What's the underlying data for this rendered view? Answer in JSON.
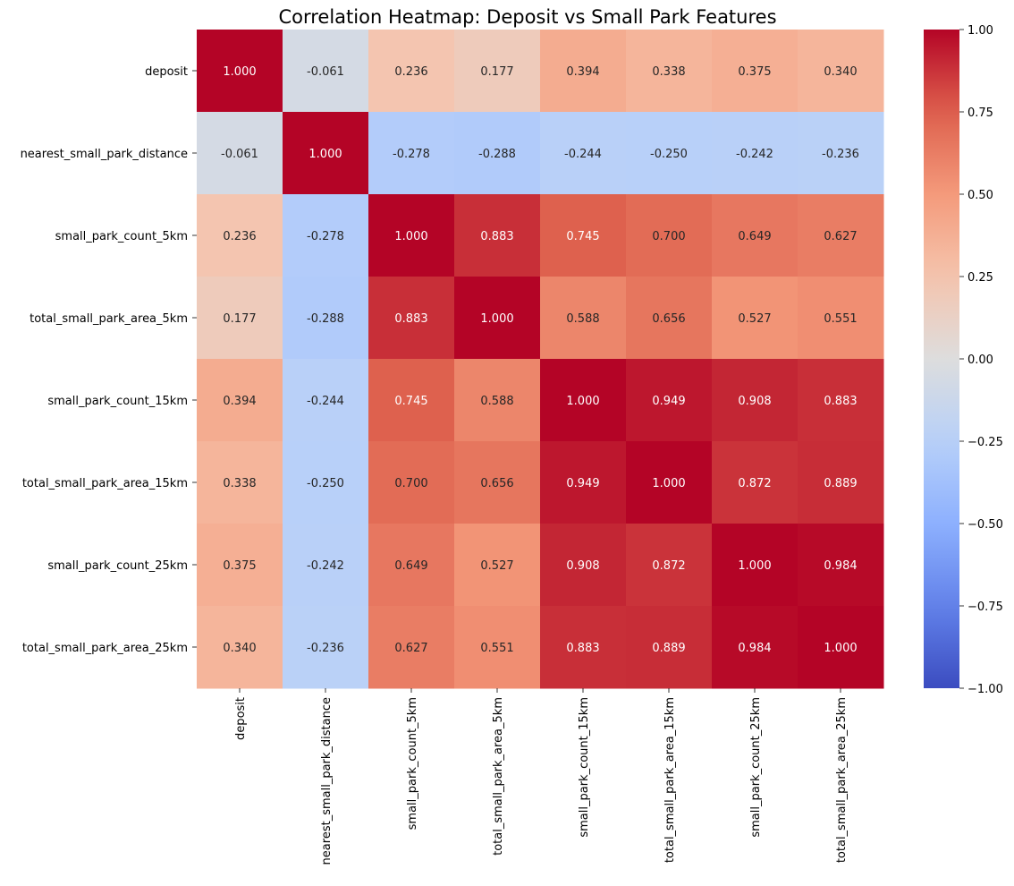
{
  "chart_data": {
    "type": "heatmap",
    "title": "Correlation Heatmap: Deposit vs Small Park Features",
    "xlabel": "",
    "ylabel": "",
    "rows": [
      "deposit",
      "nearest_small_park_distance",
      "small_park_count_5km",
      "total_small_park_area_5km",
      "small_park_count_15km",
      "total_small_park_area_15km",
      "small_park_count_25km",
      "total_small_park_area_25km"
    ],
    "columns": [
      "deposit",
      "nearest_small_park_distance",
      "small_park_count_5km",
      "total_small_park_area_5km",
      "small_park_count_15km",
      "total_small_park_area_15km",
      "small_park_count_25km",
      "total_small_park_area_25km"
    ],
    "values": [
      [
        1.0,
        -0.061,
        0.236,
        0.177,
        0.394,
        0.338,
        0.375,
        0.34
      ],
      [
        -0.061,
        1.0,
        -0.278,
        -0.288,
        -0.244,
        -0.25,
        -0.242,
        -0.236
      ],
      [
        0.236,
        -0.278,
        1.0,
        0.883,
        0.745,
        0.7,
        0.649,
        0.627
      ],
      [
        0.177,
        -0.288,
        0.883,
        1.0,
        0.588,
        0.656,
        0.527,
        0.551
      ],
      [
        0.394,
        -0.244,
        0.745,
        0.588,
        1.0,
        0.949,
        0.908,
        0.883
      ],
      [
        0.338,
        -0.25,
        0.7,
        0.656,
        0.949,
        1.0,
        0.872,
        0.889
      ],
      [
        0.375,
        -0.242,
        0.649,
        0.527,
        0.908,
        0.872,
        1.0,
        0.984
      ],
      [
        0.34,
        -0.236,
        0.627,
        0.551,
        0.883,
        0.889,
        0.984,
        1.0
      ]
    ],
    "value_format": "0.000",
    "colormap": "coolwarm",
    "vmin": -1.0,
    "vmax": 1.0,
    "colorbar": {
      "ticks": [
        -1.0,
        -0.75,
        -0.5,
        -0.25,
        0.0,
        0.25,
        0.5,
        0.75,
        1.0
      ],
      "tick_labels": [
        "−1.00",
        "−0.75",
        "−0.50",
        "−0.25",
        "0.00",
        "0.25",
        "0.50",
        "0.75",
        "1.00"
      ]
    },
    "grid": false
  }
}
